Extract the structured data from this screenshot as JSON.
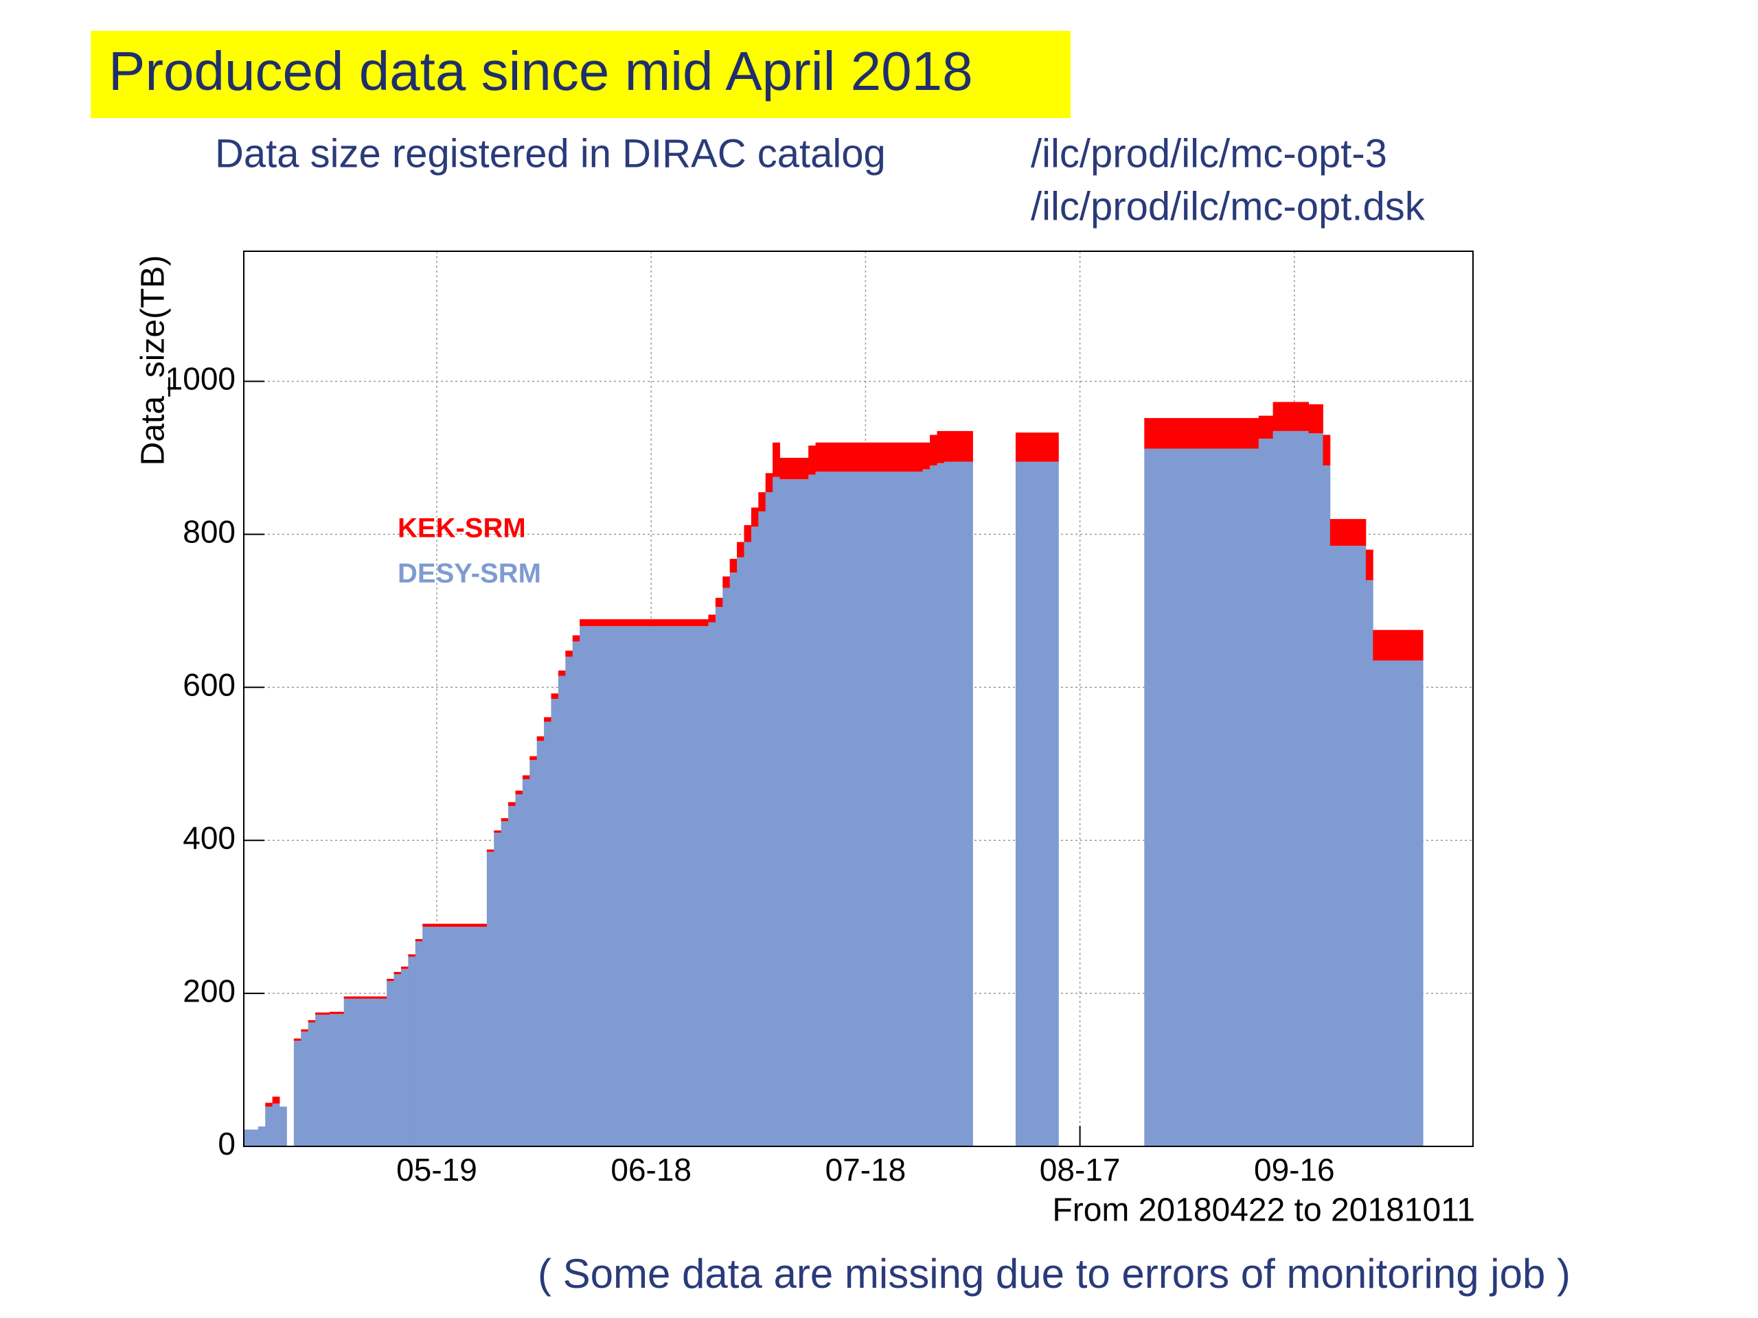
{
  "chart_data": {
    "type": "stacked-step",
    "title": "Produced data since mid April 2018",
    "subtitle": "Data size registered in DIRAC catalog",
    "annotations": [
      "/ilc/prod/ilc/mc-opt-3",
      "/ilc/prod/ilc/mc-opt.dsk"
    ],
    "x_label": "From 20180422 to 20181011",
    "y_label": "Data_size(TB)",
    "footnote": "( Some data are missing due to errors of monitoring job )",
    "x": [
      "04-22",
      "04-24",
      "04-25",
      "04-26",
      "04-27",
      "04-28",
      "04-29",
      "04-30",
      "05-01",
      "05-02",
      "05-04",
      "05-06",
      "05-12",
      "05-13",
      "05-14",
      "05-15",
      "05-16",
      "05-17",
      "05-26",
      "05-27",
      "05-28",
      "05-29",
      "05-30",
      "05-31",
      "06-01",
      "06-02",
      "06-03",
      "06-04",
      "06-05",
      "06-06",
      "06-07",
      "06-08",
      "06-26",
      "06-27",
      "06-28",
      "06-29",
      "06-30",
      "07-01",
      "07-02",
      "07-03",
      "07-04",
      "07-05",
      "07-06",
      "07-10",
      "07-11",
      "07-26",
      "07-27",
      "07-28",
      "07-29",
      "08-02",
      "08-08",
      "08-14",
      "08-26",
      "09-11",
      "09-13",
      "09-18",
      "09-20",
      "09-21",
      "09-26",
      "09-27",
      "10-04"
    ],
    "series": [
      {
        "name": "DESY-SRM",
        "color": "#7f9bd1",
        "values": [
          22,
          26,
          52,
          56,
          52,
          null,
          138,
          150,
          162,
          172,
          173,
          193,
          216,
          225,
          232,
          248,
          268,
          287,
          385,
          410,
          425,
          445,
          460,
          480,
          505,
          530,
          555,
          585,
          615,
          640,
          660,
          680,
          685,
          705,
          730,
          750,
          770,
          790,
          810,
          830,
          855,
          875,
          872,
          878,
          882,
          885,
          890,
          893,
          895,
          null,
          895,
          null,
          912,
          925,
          935,
          932,
          890,
          785,
          740,
          635,
          null
        ]
      },
      {
        "name": "KEK-SRM",
        "color": "#ff0000",
        "values": [
          0,
          0,
          5,
          9,
          0,
          null,
          3,
          3,
          3,
          3,
          3,
          3,
          3,
          3,
          3,
          3,
          3,
          4,
          3,
          3,
          4,
          5,
          5,
          5,
          5,
          6,
          6,
          7,
          7,
          8,
          8,
          9,
          10,
          12,
          15,
          18,
          20,
          22,
          25,
          25,
          25,
          45,
          28,
          38,
          38,
          35,
          40,
          42,
          40,
          null,
          38,
          null,
          40,
          30,
          38,
          38,
          40,
          35,
          40,
          40,
          null
        ]
      }
    ],
    "xlim": [
      "04-22",
      "10-11"
    ],
    "xticks": [
      "05-19",
      "06-18",
      "07-18",
      "08-17",
      "09-16"
    ],
    "ylim": [
      0,
      1170
    ],
    "yticks": [
      0,
      200,
      400,
      600,
      800,
      1000
    ],
    "grid": true,
    "legend": "upper-left"
  }
}
